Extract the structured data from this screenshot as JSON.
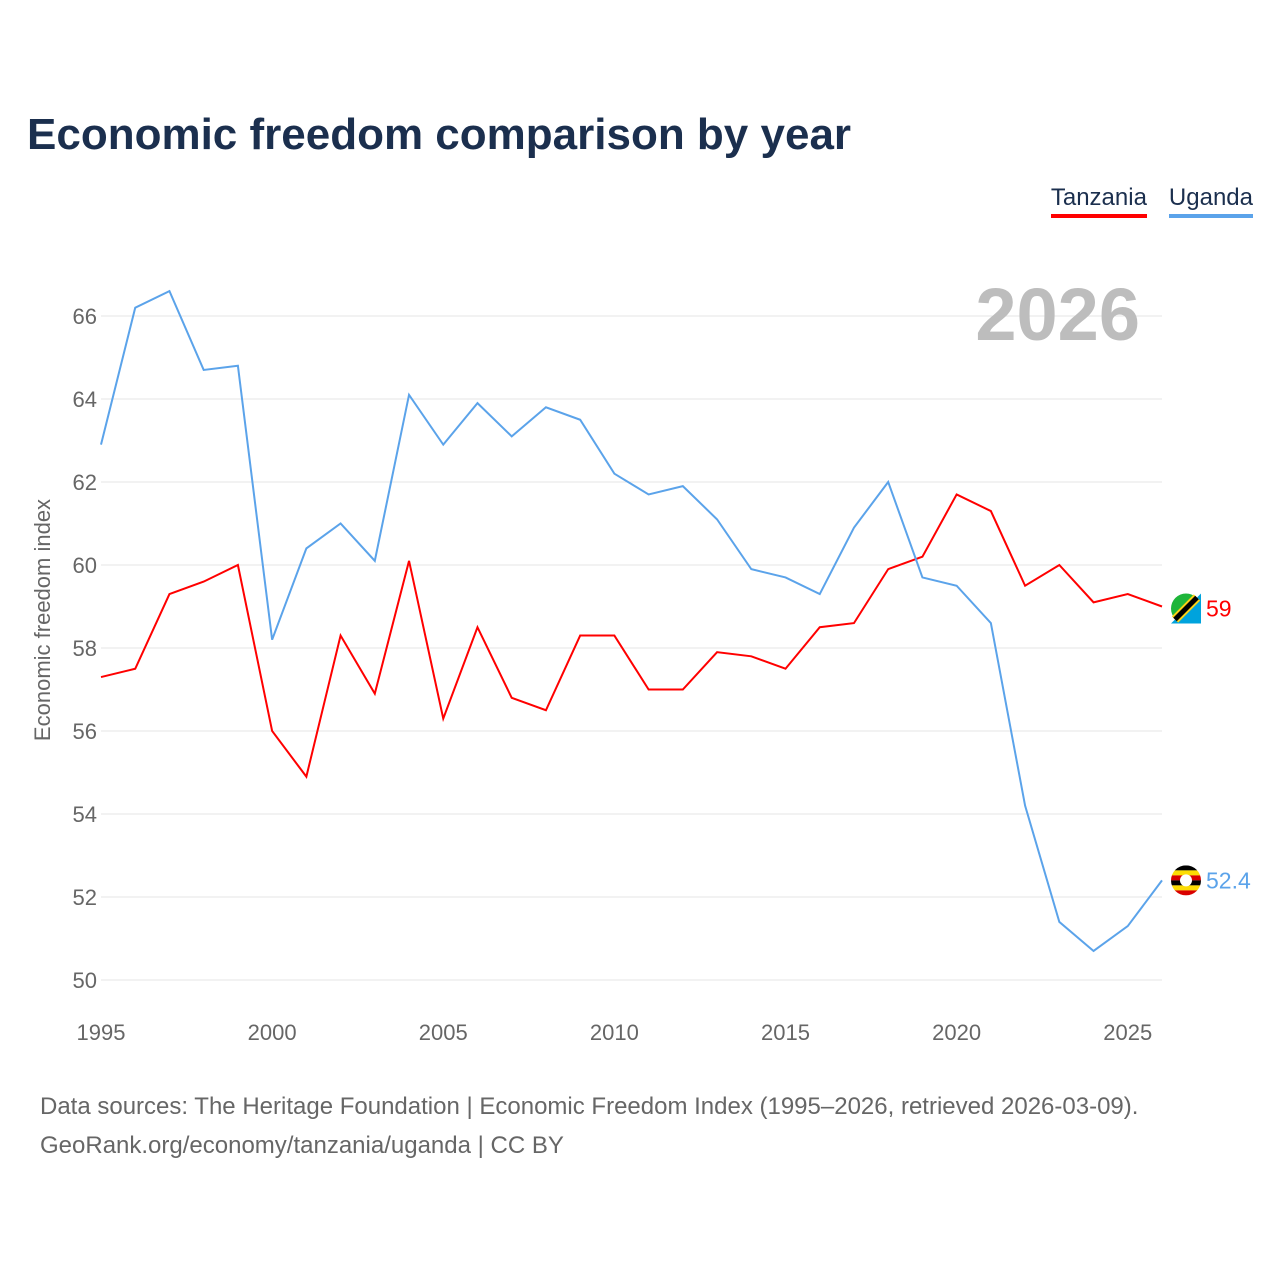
{
  "title": "Economic freedom comparison by year",
  "year_label": "2026",
  "footer": {
    "line1": "Data sources: The Heritage Foundation | Economic Freedom Index (1995–2026, retrieved 2026-03-09).",
    "line2": "GeoRank.org/economy/tanzania/uganda | CC BY"
  },
  "chart_data": {
    "type": "line",
    "title": "Economic freedom comparison by year",
    "xlabel": "",
    "ylabel": "Economic freedom index",
    "xlim": [
      1995,
      2026
    ],
    "ylim": [
      50,
      66
    ],
    "x_ticks": [
      1995,
      2000,
      2005,
      2010,
      2015,
      2020,
      2025
    ],
    "y_ticks": [
      50,
      52,
      54,
      56,
      58,
      60,
      62,
      64,
      66
    ],
    "grid": true,
    "legend_position": "top-right",
    "x": [
      1995,
      1996,
      1997,
      1998,
      1999,
      2000,
      2001,
      2002,
      2003,
      2004,
      2005,
      2006,
      2007,
      2008,
      2009,
      2010,
      2011,
      2012,
      2013,
      2014,
      2015,
      2016,
      2017,
      2018,
      2019,
      2020,
      2021,
      2022,
      2023,
      2024,
      2025,
      2026
    ],
    "series": [
      {
        "name": "Tanzania",
        "color": "#ff0000",
        "end_label": "59",
        "values": [
          57.3,
          57.5,
          59.3,
          59.6,
          60.0,
          56.0,
          54.9,
          58.3,
          56.9,
          60.1,
          56.3,
          58.5,
          56.8,
          56.5,
          58.3,
          58.3,
          57.0,
          57.0,
          57.9,
          57.8,
          57.5,
          58.5,
          58.6,
          59.9,
          60.2,
          61.7,
          61.3,
          59.5,
          60.0,
          59.1,
          59.3,
          59.0
        ]
      },
      {
        "name": "Uganda",
        "color": "#5ba3ea",
        "end_label": "52.4",
        "values": [
          62.9,
          66.2,
          66.6,
          64.7,
          64.8,
          58.2,
          60.4,
          61.0,
          60.1,
          64.1,
          62.9,
          63.9,
          63.1,
          63.8,
          63.5,
          62.2,
          61.7,
          61.9,
          61.1,
          59.9,
          59.7,
          59.3,
          60.9,
          62.0,
          59.7,
          59.5,
          58.6,
          54.2,
          51.4,
          50.7,
          51.3,
          52.4
        ]
      }
    ]
  }
}
